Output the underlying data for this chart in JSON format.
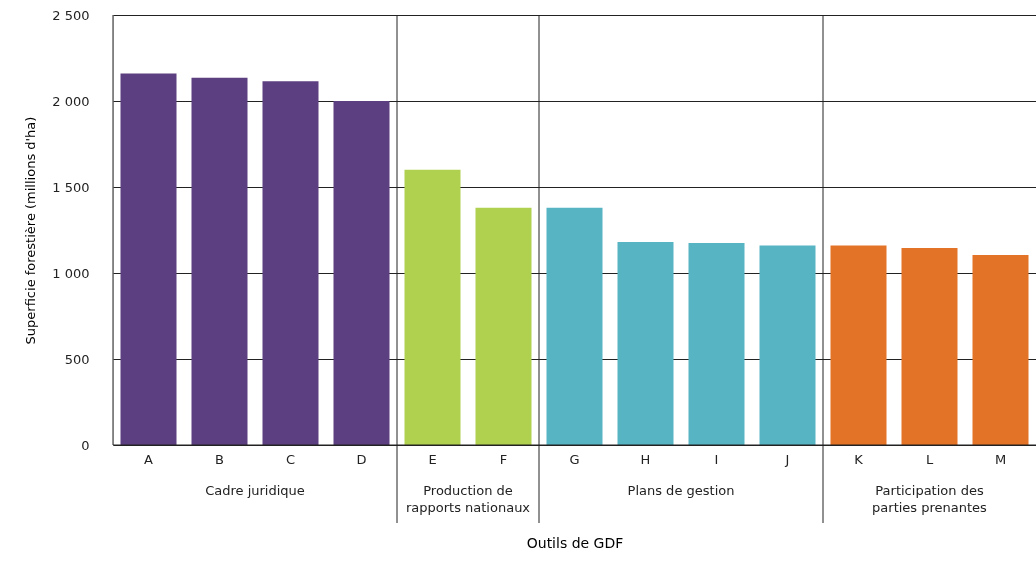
{
  "chart_data": {
    "type": "bar",
    "xlabel": "Outils de GDF",
    "ylabel": "Superficie forestière (millions d'ha)",
    "categories": [
      "A",
      "B",
      "C",
      "D",
      "E",
      "F",
      "G",
      "H",
      "I",
      "J",
      "K",
      "L",
      "M"
    ],
    "values": [
      2160,
      2135,
      2115,
      2000,
      1600,
      1380,
      1380,
      1180,
      1175,
      1160,
      1160,
      1145,
      1105
    ],
    "colors": [
      "#5c3f80",
      "#5c3f80",
      "#5c3f80",
      "#5c3f80",
      "#afd14f",
      "#afd14f",
      "#57b4c3",
      "#57b4c3",
      "#57b4c3",
      "#57b4c3",
      "#e37327",
      "#e37327",
      "#e37327"
    ],
    "ylim": [
      0,
      2500
    ],
    "yticks": [
      0,
      500,
      {
        "value": 1000,
        "label": "1 000"
      },
      {
        "value": 1500,
        "label": "1 500"
      },
      {
        "value": 2000,
        "label": "2 000"
      },
      {
        "value": 2500,
        "label": "2 500"
      }
    ],
    "grid": "y",
    "annotations": [
      "Cadre juridique",
      "Production de\nrapports nationaux",
      "Plans de gestion",
      "Participation des\nparties prenantes"
    ]
  }
}
